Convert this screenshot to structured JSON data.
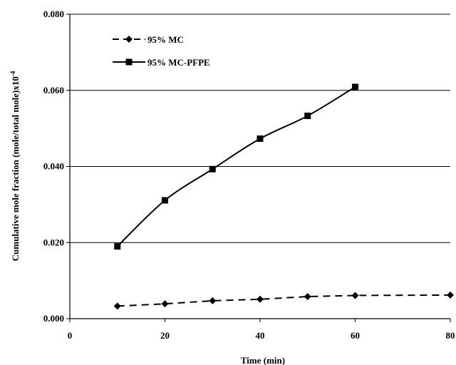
{
  "chart_data": {
    "type": "line",
    "title": "",
    "xlabel": "Time (min)",
    "ylabel": "Cumulative mole fraction (mole/total mole)x10",
    "ylabel_superscript": "-4",
    "xlim": [
      0,
      80
    ],
    "ylim": [
      0,
      0.08
    ],
    "x_ticks": [
      0,
      20,
      40,
      60,
      80
    ],
    "x_tick_labels": [
      "0",
      "20",
      "40",
      "60",
      "80"
    ],
    "y_ticks": [
      0,
      0.02,
      0.04,
      0.06,
      0.08
    ],
    "y_tick_labels": [
      "0.000",
      "0.020",
      "0.040",
      "0.060",
      "0.080"
    ],
    "grid": "horizontal",
    "legend_position": "top-left",
    "series": [
      {
        "name": "95% MC",
        "style": "dashed",
        "marker": "diamond",
        "color": "#000000",
        "x": [
          10,
          20,
          30,
          40,
          50,
          60,
          80
        ],
        "y": [
          0.0033,
          0.0039,
          0.0047,
          0.0051,
          0.0058,
          0.0061,
          0.0062
        ]
      },
      {
        "name": "95% MC-PFPE",
        "style": "solid",
        "marker": "square",
        "color": "#000000",
        "x": [
          10,
          20,
          30,
          40,
          50,
          60
        ],
        "y": [
          0.019,
          0.0311,
          0.0393,
          0.0473,
          0.0533,
          0.0609
        ]
      }
    ]
  }
}
